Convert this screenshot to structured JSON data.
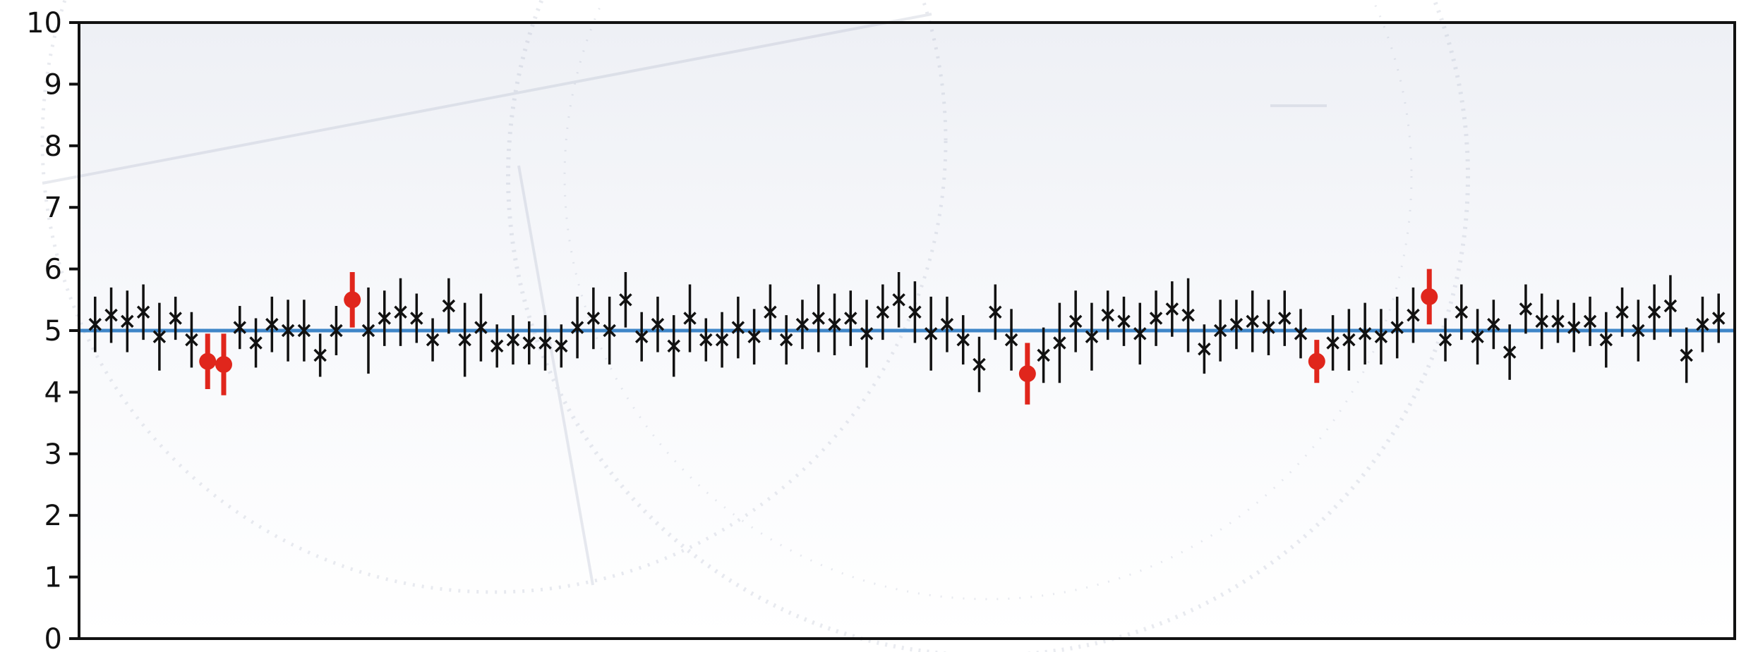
{
  "chart_data": {
    "type": "scatter",
    "title": "",
    "xlabel": "",
    "ylabel": "",
    "ylim": [
      0,
      10
    ],
    "yticks": [
      "0",
      "1",
      "2",
      "3",
      "4",
      "5",
      "6",
      "7",
      "8",
      "9",
      "10"
    ],
    "x_tick_labels_shown": false,
    "grid": false,
    "reference_line": {
      "y": 5.0,
      "color": "#3f86c8"
    },
    "series": [
      {
        "marker": "x",
        "color": "#111111",
        "points": [
          {
            "x": 1,
            "y": 5.1,
            "err": 0.45
          },
          {
            "x": 2,
            "y": 5.25,
            "err": 0.45
          },
          {
            "x": 3,
            "y": 5.15,
            "err": 0.5
          },
          {
            "x": 4,
            "y": 5.3,
            "err": 0.45
          },
          {
            "x": 5,
            "y": 4.9,
            "err": 0.55
          },
          {
            "x": 6,
            "y": 5.2,
            "err": 0.35
          },
          {
            "x": 7,
            "y": 4.85,
            "err": 0.45
          },
          {
            "x": 10,
            "y": 5.05,
            "err": 0.35
          },
          {
            "x": 11,
            "y": 4.8,
            "err": 0.4
          },
          {
            "x": 12,
            "y": 5.1,
            "err": 0.45
          },
          {
            "x": 13,
            "y": 5.0,
            "err": 0.5
          },
          {
            "x": 14,
            "y": 5.0,
            "err": 0.5
          },
          {
            "x": 15,
            "y": 4.6,
            "err": 0.35
          },
          {
            "x": 16,
            "y": 5.0,
            "err": 0.4
          },
          {
            "x": 18,
            "y": 5.0,
            "err": 0.7
          },
          {
            "x": 19,
            "y": 5.2,
            "err": 0.45
          },
          {
            "x": 20,
            "y": 5.3,
            "err": 0.55
          },
          {
            "x": 21,
            "y": 5.2,
            "err": 0.4
          },
          {
            "x": 22,
            "y": 4.85,
            "err": 0.35
          },
          {
            "x": 23,
            "y": 5.4,
            "err": 0.45
          },
          {
            "x": 24,
            "y": 4.85,
            "err": 0.6
          },
          {
            "x": 25,
            "y": 5.05,
            "err": 0.55
          },
          {
            "x": 26,
            "y": 4.75,
            "err": 0.35
          },
          {
            "x": 27,
            "y": 4.85,
            "err": 0.4
          },
          {
            "x": 28,
            "y": 4.8,
            "err": 0.35
          },
          {
            "x": 29,
            "y": 4.8,
            "err": 0.45
          },
          {
            "x": 30,
            "y": 4.75,
            "err": 0.35
          },
          {
            "x": 31,
            "y": 5.05,
            "err": 0.5
          },
          {
            "x": 32,
            "y": 5.2,
            "err": 0.5
          },
          {
            "x": 33,
            "y": 5.0,
            "err": 0.55
          },
          {
            "x": 34,
            "y": 5.5,
            "err": 0.45
          },
          {
            "x": 35,
            "y": 4.9,
            "err": 0.4
          },
          {
            "x": 36,
            "y": 5.1,
            "err": 0.45
          },
          {
            "x": 37,
            "y": 4.75,
            "err": 0.5
          },
          {
            "x": 38,
            "y": 5.2,
            "err": 0.55
          },
          {
            "x": 39,
            "y": 4.85,
            "err": 0.35
          },
          {
            "x": 40,
            "y": 4.85,
            "err": 0.45
          },
          {
            "x": 41,
            "y": 5.05,
            "err": 0.5
          },
          {
            "x": 42,
            "y": 4.9,
            "err": 0.45
          },
          {
            "x": 43,
            "y": 5.3,
            "err": 0.45
          },
          {
            "x": 44,
            "y": 4.85,
            "err": 0.4
          },
          {
            "x": 45,
            "y": 5.1,
            "err": 0.4
          },
          {
            "x": 46,
            "y": 5.2,
            "err": 0.55
          },
          {
            "x": 47,
            "y": 5.1,
            "err": 0.5
          },
          {
            "x": 48,
            "y": 5.2,
            "err": 0.45
          },
          {
            "x": 49,
            "y": 4.95,
            "err": 0.55
          },
          {
            "x": 50,
            "y": 5.3,
            "err": 0.45
          },
          {
            "x": 51,
            "y": 5.5,
            "err": 0.45
          },
          {
            "x": 52,
            "y": 5.3,
            "err": 0.5
          },
          {
            "x": 53,
            "y": 4.95,
            "err": 0.6
          },
          {
            "x": 54,
            "y": 5.1,
            "err": 0.45
          },
          {
            "x": 55,
            "y": 4.85,
            "err": 0.4
          },
          {
            "x": 56,
            "y": 4.45,
            "err": 0.45
          },
          {
            "x": 57,
            "y": 5.3,
            "err": 0.45
          },
          {
            "x": 58,
            "y": 4.85,
            "err": 0.5
          },
          {
            "x": 60,
            "y": 4.6,
            "err": 0.45
          },
          {
            "x": 61,
            "y": 4.8,
            "err": 0.65
          },
          {
            "x": 62,
            "y": 5.15,
            "err": 0.5
          },
          {
            "x": 63,
            "y": 4.9,
            "err": 0.55
          },
          {
            "x": 64,
            "y": 5.25,
            "err": 0.4
          },
          {
            "x": 65,
            "y": 5.15,
            "err": 0.4
          },
          {
            "x": 66,
            "y": 4.95,
            "err": 0.5
          },
          {
            "x": 67,
            "y": 5.2,
            "err": 0.45
          },
          {
            "x": 68,
            "y": 5.35,
            "err": 0.45
          },
          {
            "x": 69,
            "y": 5.25,
            "err": 0.6
          },
          {
            "x": 70,
            "y": 4.7,
            "err": 0.4
          },
          {
            "x": 71,
            "y": 5.0,
            "err": 0.5
          },
          {
            "x": 72,
            "y": 5.1,
            "err": 0.4
          },
          {
            "x": 73,
            "y": 5.15,
            "err": 0.5
          },
          {
            "x": 74,
            "y": 5.05,
            "err": 0.45
          },
          {
            "x": 75,
            "y": 5.2,
            "err": 0.45
          },
          {
            "x": 76,
            "y": 4.95,
            "err": 0.4
          },
          {
            "x": 78,
            "y": 4.8,
            "err": 0.45
          },
          {
            "x": 79,
            "y": 4.85,
            "err": 0.5
          },
          {
            "x": 80,
            "y": 4.95,
            "err": 0.5
          },
          {
            "x": 81,
            "y": 4.9,
            "err": 0.45
          },
          {
            "x": 82,
            "y": 5.05,
            "err": 0.5
          },
          {
            "x": 83,
            "y": 5.25,
            "err": 0.45
          },
          {
            "x": 85,
            "y": 4.85,
            "err": 0.35
          },
          {
            "x": 86,
            "y": 5.3,
            "err": 0.45
          },
          {
            "x": 87,
            "y": 4.9,
            "err": 0.45
          },
          {
            "x": 88,
            "y": 5.1,
            "err": 0.4
          },
          {
            "x": 89,
            "y": 4.65,
            "err": 0.45
          },
          {
            "x": 90,
            "y": 5.35,
            "err": 0.4
          },
          {
            "x": 91,
            "y": 5.15,
            "err": 0.45
          },
          {
            "x": 92,
            "y": 5.15,
            "err": 0.35
          },
          {
            "x": 93,
            "y": 5.05,
            "err": 0.4
          },
          {
            "x": 94,
            "y": 5.15,
            "err": 0.4
          },
          {
            "x": 95,
            "y": 4.85,
            "err": 0.45
          },
          {
            "x": 96,
            "y": 5.3,
            "err": 0.4
          },
          {
            "x": 97,
            "y": 5.0,
            "err": 0.5
          },
          {
            "x": 98,
            "y": 5.3,
            "err": 0.45
          },
          {
            "x": 99,
            "y": 5.4,
            "err": 0.5
          },
          {
            "x": 100,
            "y": 4.6,
            "err": 0.45
          },
          {
            "x": 101,
            "y": 5.1,
            "err": 0.45
          },
          {
            "x": 102,
            "y": 5.2,
            "err": 0.4
          }
        ]
      },
      {
        "marker": "filled-circle",
        "color": "#e0261c",
        "points": [
          {
            "x": 8,
            "y": 4.5,
            "err": 0.45
          },
          {
            "x": 9,
            "y": 4.45,
            "err": 0.5
          },
          {
            "x": 17,
            "y": 5.5,
            "err": 0.45
          },
          {
            "x": 59,
            "y": 4.3,
            "err": 0.5
          },
          {
            "x": 77,
            "y": 4.5,
            "err": 0.35
          },
          {
            "x": 84,
            "y": 5.55,
            "err": 0.45
          }
        ]
      }
    ]
  }
}
